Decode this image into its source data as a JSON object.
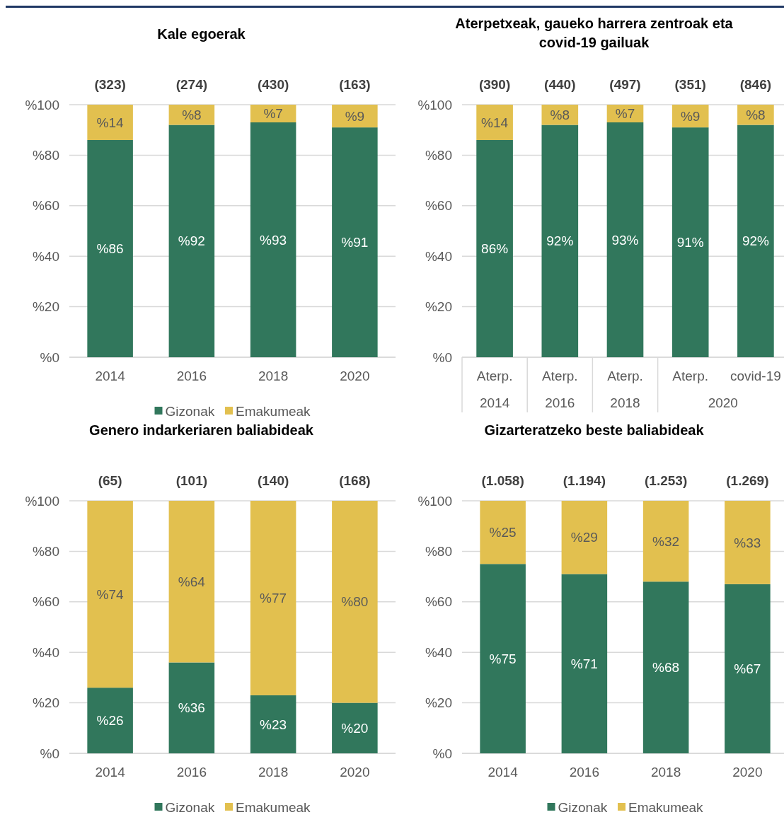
{
  "chart_data": [
    {
      "type": "bar",
      "title": "Kale egoerak",
      "categories": [
        "2014",
        "2016",
        "2018",
        "2020"
      ],
      "stacked": true,
      "ylim": [
        0,
        100
      ],
      "yticks": [
        {
          "value": 0,
          "label": "%0"
        },
        {
          "value": 20,
          "label": "%20"
        },
        {
          "value": 40,
          "label": "%40"
        },
        {
          "value": 60,
          "label": "%60"
        },
        {
          "value": 80,
          "label": "%80"
        },
        {
          "value": 100,
          "label": "%100"
        }
      ],
      "grid": "y",
      "legend": "bottom",
      "annotations": [
        "(323)",
        "(274)",
        "(430)",
        "(163)"
      ],
      "series": [
        {
          "name": "Gizonak",
          "color": "#31775c",
          "values": [
            86,
            92,
            93,
            91
          ],
          "value_labels": [
            "%86",
            "%92",
            "%93",
            "%91"
          ]
        },
        {
          "name": "Emakumeak",
          "color": "#e2c04f",
          "values": [
            14,
            8,
            7,
            9
          ],
          "value_labels": [
            "%14",
            "%8",
            "%7",
            "%9"
          ]
        }
      ]
    },
    {
      "type": "bar",
      "title": "Aterpetxeak, gaueko harrera zentroak eta covid-19 gailuak",
      "categories": [
        "Aterp.",
        "Aterp.",
        "Aterp.",
        "Aterp.",
        "covid-19"
      ],
      "annotations": [
        "(390)",
        "(440)",
        "(497)",
        "(351)",
        "(846)",
        "2014",
        "2016",
        "2018",
        "2020"
      ],
      "stacked": true,
      "ylim": [
        0,
        100
      ],
      "yticks": [
        {
          "value": 0,
          "label": "%0"
        },
        {
          "value": 20,
          "label": "%20"
        },
        {
          "value": 40,
          "label": "%40"
        },
        {
          "value": 60,
          "label": "%60"
        },
        {
          "value": 80,
          "label": "%80"
        },
        {
          "value": 100,
          "label": "%100"
        }
      ],
      "grid": "y",
      "series": [
        {
          "color": "#31775c",
          "values": [
            86,
            92,
            93,
            91,
            92
          ],
          "value_labels": [
            "86%",
            "92%",
            "93%",
            "91%",
            "92%"
          ]
        },
        {
          "color": "#e2c04f",
          "values": [
            14,
            8,
            7,
            9,
            8
          ],
          "value_labels": [
            "%14",
            "%8",
            "%7",
            "%9",
            "%8"
          ]
        }
      ]
    },
    {
      "type": "bar",
      "title": "Genero indarkeriaren baliabideak",
      "categories": [
        "2014",
        "2016",
        "2018",
        "2020"
      ],
      "stacked": true,
      "ylim": [
        0,
        100
      ],
      "yticks": [
        {
          "value": 0,
          "label": "%0"
        },
        {
          "value": 20,
          "label": "%20"
        },
        {
          "value": 40,
          "label": "%40"
        },
        {
          "value": 60,
          "label": "%60"
        },
        {
          "value": 80,
          "label": "%80"
        },
        {
          "value": 100,
          "label": "%100"
        }
      ],
      "grid": "y",
      "legend": "bottom",
      "annotations": [
        "(65)",
        "(101)",
        "(140)",
        "(168)"
      ],
      "series": [
        {
          "name": "Gizonak",
          "color": "#31775c",
          "values": [
            26,
            36,
            23,
            20
          ],
          "value_labels": [
            "%26",
            "%36",
            "%23",
            "%20"
          ]
        },
        {
          "name": "Emakumeak",
          "color": "#e2c04f",
          "values": [
            74,
            64,
            77,
            80
          ],
          "value_labels": [
            "%74",
            "%64",
            "%77",
            "%80"
          ]
        }
      ]
    },
    {
      "type": "bar",
      "title": "Gizarteratzeko beste baliabideak",
      "categories": [
        "2014",
        "2016",
        "2018",
        "2020"
      ],
      "stacked": true,
      "ylim": [
        0,
        100
      ],
      "yticks": [
        {
          "value": 0,
          "label": "%0"
        },
        {
          "value": 20,
          "label": "%20"
        },
        {
          "value": 40,
          "label": "%40"
        },
        {
          "value": 60,
          "label": "%60"
        },
        {
          "value": 80,
          "label": "%80"
        },
        {
          "value": 100,
          "label": "%100"
        }
      ],
      "grid": "y",
      "legend": "bottom",
      "annotations": [
        "(1.058)",
        "(1.194)",
        "(1.253)",
        "(1.269)"
      ],
      "series": [
        {
          "name": "Gizonak",
          "color": "#31775c",
          "values": [
            75,
            71,
            68,
            67
          ],
          "value_labels": [
            "%75",
            "%71",
            "%68",
            "%67"
          ]
        },
        {
          "name": "Emakumeak",
          "color": "#e2c04f",
          "values": [
            25,
            29,
            32,
            33
          ],
          "value_labels": [
            "%25",
            "%29",
            "%32",
            "%33"
          ]
        }
      ]
    }
  ]
}
